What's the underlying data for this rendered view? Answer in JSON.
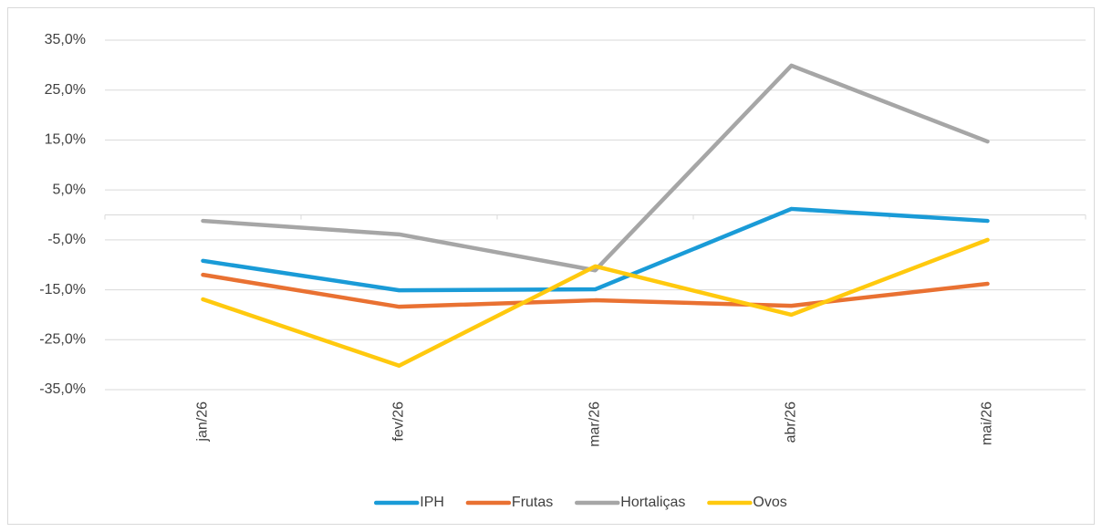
{
  "chart_data": {
    "type": "line",
    "categories": [
      "jan/26",
      "fev/26",
      "mar/26",
      "abr/26",
      "mai/26"
    ],
    "series": [
      {
        "name": "IPH",
        "color": "#1a9bd7",
        "values": [
          -9.2,
          -15.1,
          -14.9,
          1.2,
          -1.2
        ]
      },
      {
        "name": "Frutas",
        "color": "#e97132",
        "values": [
          -12.0,
          -18.4,
          -17.1,
          -18.2,
          -13.8
        ]
      },
      {
        "name": "Hortaliças",
        "color": "#a6a6a6",
        "values": [
          -1.2,
          -3.9,
          -11.1,
          29.9,
          14.7
        ]
      },
      {
        "name": "Ovos",
        "color": "#ffc90e",
        "values": [
          -16.9,
          -30.2,
          -10.3,
          -20.0,
          -5.0
        ]
      }
    ],
    "ylim": [
      -35,
      35
    ],
    "yticks": [
      {
        "value": 35,
        "label": "35,0%"
      },
      {
        "value": 25,
        "label": "25,0%"
      },
      {
        "value": 15,
        "label": "15,0%"
      },
      {
        "value": 5,
        "label": "5,0%"
      },
      {
        "value": -5,
        "label": "-5,0%"
      },
      {
        "value": -15,
        "label": "-15,0%"
      },
      {
        "value": -25,
        "label": "-25,0%"
      },
      {
        "value": -35,
        "label": "-35,0%"
      }
    ],
    "grid": true,
    "legend": "bottom"
  }
}
